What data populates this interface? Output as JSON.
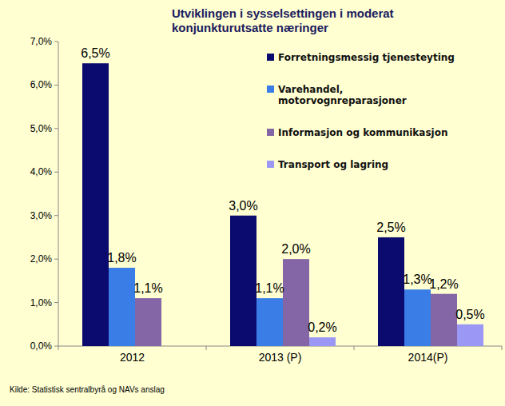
{
  "chart_data": {
    "type": "bar",
    "title": "Utviklingen i sysselsettingen i moderat konjunkturutsatte næringer",
    "categories": [
      "2012",
      "2013 (P)",
      "2014(P)"
    ],
    "series": [
      {
        "name": "Forretningsmessig tjenesteyting",
        "color": "#0b0b6f",
        "values": [
          6.5,
          3.0,
          2.5
        ],
        "value_labels": [
          "6,5%",
          "3,0%",
          "2,5%"
        ]
      },
      {
        "name": "Varehandel, motorvognreparasjoner",
        "color": "#3a7de6",
        "values": [
          1.8,
          1.1,
          1.3
        ],
        "value_labels": [
          "1,8%",
          "1,1%",
          "1,3%"
        ]
      },
      {
        "name": "Informasjon og kommunikasjon",
        "color": "#8466a6",
        "values": [
          1.1,
          2.0,
          1.2
        ],
        "value_labels": [
          "1,1%",
          "2,0%",
          "1,2%"
        ]
      },
      {
        "name": "Transport og lagring",
        "color": "#9a98f4",
        "values": [
          0,
          0.2,
          0.5
        ],
        "value_labels": [
          null,
          "0,2%",
          "0,5%"
        ]
      }
    ],
    "ylim": [
      0,
      7
    ],
    "yticks": [
      {
        "value": 0,
        "label": "0,0%"
      },
      {
        "value": 1,
        "label": "1,0%"
      },
      {
        "value": 2,
        "label": "2,0%"
      },
      {
        "value": 3,
        "label": "3,0%"
      },
      {
        "value": 4,
        "label": "4,0%"
      },
      {
        "value": 5,
        "label": "5,0%"
      },
      {
        "value": 6,
        "label": "6,0%"
      },
      {
        "value": 7,
        "label": "7,0%"
      }
    ],
    "grid": false,
    "legend": "upper right",
    "data_labels": true,
    "source": "Kilde: Statistisk sentralbyrå og NAVs anslag"
  }
}
